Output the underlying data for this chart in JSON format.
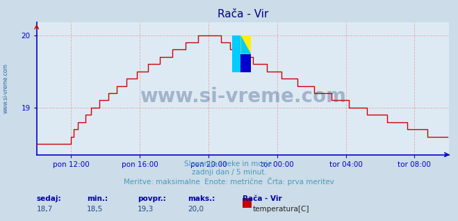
{
  "title": "Rača - Vir",
  "bg_color": "#ccdce8",
  "plot_bg_color": "#ddeaf4",
  "line_color": "#cc0000",
  "grid_color": "#e8a0a0",
  "axis_color": "#0000cc",
  "title_color": "#000080",
  "subtitle_lines": [
    "Slovenija / reke in morje.",
    "zadnji dan / 5 minut.",
    "Meritve: maksimalne  Enote: metrične  Črta: prva meritev"
  ],
  "subtitle_color": "#4499bb",
  "watermark": "www.si-vreme.com",
  "watermark_color": "#1a3a6a",
  "watermark_alpha": 0.3,
  "ylabel_text": "www.si-vreme.com",
  "xticklabels": [
    "pon 12:00",
    "pon 16:00",
    "pon 20:00",
    "tor 00:00",
    "tor 04:00",
    "tor 08:00"
  ],
  "xtick_positions": [
    24,
    72,
    120,
    168,
    216,
    264
  ],
  "ytick_positions": [
    19,
    20
  ],
  "ylim": [
    18.35,
    20.18
  ],
  "xlim": [
    0,
    288
  ],
  "sedaj": "18,7",
  "min_val": "18,5",
  "povpr_val": "19,3",
  "maks_val": "20,0",
  "legend_label": "temperatura[C]",
  "legend_color": "#cc0000",
  "stats_label_color": "#0000aa",
  "stats_val_color": "#224488",
  "logo_colors": [
    "#00ccff",
    "#ffee00",
    "#0000cc"
  ],
  "grid_linestyle": "--",
  "grid_alpha": 0.9
}
